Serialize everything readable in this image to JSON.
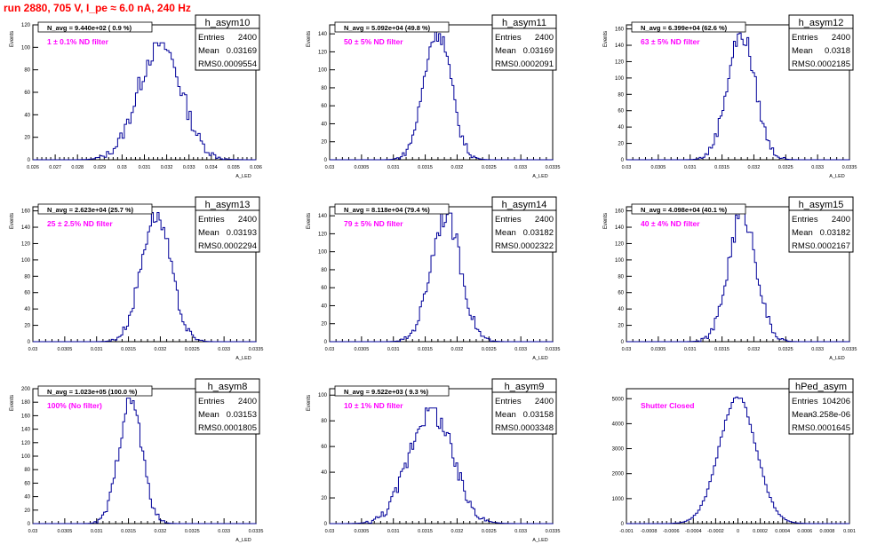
{
  "page": {
    "run_title": "run 2880,   705 V, I_pe ≈ 6.0 nA, 240 Hz",
    "title_color": "#ff0000",
    "label_color": "#ff00ff",
    "hist_color": "#000099"
  },
  "chart_data": [
    {
      "type": "bar",
      "name": "h_asym10",
      "ylabel": "Events",
      "xlabel": "A_LED",
      "xlim": [
        0.026,
        0.036
      ],
      "ylim": [
        0,
        120
      ],
      "xticks": [
        "0.026",
        "0.027",
        "0.028",
        "0.029",
        "0.03",
        "0.031",
        "0.032",
        "0.033",
        "0.034",
        "0.035",
        "0.036"
      ],
      "yticks": [
        "0",
        "20",
        "40",
        "60",
        "80",
        "100",
        "120"
      ],
      "navg": "N_avg = 9.440e+02 ( 0.9 %)",
      "filter": "1 ± 0.1% ND filter",
      "stats": {
        "entries": "2400",
        "mean": "0.03169",
        "rms": "0.0009554"
      },
      "mean": 0.03169,
      "rms": 0.0009554,
      "peak": 104,
      "bin_width": 0.0001
    },
    {
      "type": "bar",
      "name": "h_asym11",
      "ylabel": "Events",
      "xlabel": "A_LED",
      "xlim": [
        0.03,
        0.0335
      ],
      "ylim": [
        0,
        150
      ],
      "xticks": [
        "0.03",
        "0.0305",
        "0.031",
        "0.0315",
        "0.032",
        "0.0325",
        "0.033",
        "0.0335"
      ],
      "yticks": [
        "0",
        "20",
        "40",
        "60",
        "80",
        "100",
        "120",
        "140"
      ],
      "navg": "N_avg = 5.092e+04 (49.8 %)",
      "filter": "50 ± 5% ND filter",
      "stats": {
        "entries": "2400",
        "mean": "0.03169",
        "rms": "0.0002091"
      },
      "mean": 0.03169,
      "rms": 0.0002091,
      "peak": 146,
      "bin_width": 3e-05
    },
    {
      "type": "bar",
      "name": "h_asym12",
      "ylabel": "Events",
      "xlabel": "A_LED",
      "xlim": [
        0.03,
        0.0335
      ],
      "ylim": [
        0,
        165
      ],
      "xticks": [
        "0.03",
        "0.0305",
        "0.031",
        "0.0315",
        "0.032",
        "0.0325",
        "0.033",
        "0.0335"
      ],
      "yticks": [
        "0",
        "20",
        "40",
        "60",
        "80",
        "100",
        "120",
        "140",
        "160"
      ],
      "navg": "N_avg = 6.399e+04 (62.6 %)",
      "filter": "63 ± 5% ND filter",
      "stats": {
        "entries": "2400",
        "mean": "0.0318",
        "rms": "0.0002185"
      },
      "mean": 0.0318,
      "rms": 0.0002185,
      "peak": 155,
      "bin_width": 3e-05
    },
    {
      "type": "bar",
      "name": "h_asym13",
      "ylabel": "Events",
      "xlabel": "A_LED",
      "xlim": [
        0.03,
        0.0335
      ],
      "ylim": [
        0,
        165
      ],
      "xticks": [
        "0.03",
        "0.0305",
        "0.031",
        "0.0315",
        "0.032",
        "0.0325",
        "0.033",
        "0.0335"
      ],
      "yticks": [
        "0",
        "20",
        "40",
        "60",
        "80",
        "100",
        "120",
        "140",
        "160"
      ],
      "navg": "N_avg = 2.623e+04 (25.7 %)",
      "filter": "25 ± 2.5% ND filter",
      "stats": {
        "entries": "2400",
        "mean": "0.03193",
        "rms": "0.0002294"
      },
      "mean": 0.03193,
      "rms": 0.0002294,
      "peak": 158,
      "bin_width": 3e-05
    },
    {
      "type": "bar",
      "name": "h_asym14",
      "ylabel": "Events",
      "xlabel": "A_LED",
      "xlim": [
        0.03,
        0.0335
      ],
      "ylim": [
        0,
        150
      ],
      "xticks": [
        "0.03",
        "0.0305",
        "0.031",
        "0.0315",
        "0.032",
        "0.0325",
        "0.033",
        "0.0335"
      ],
      "yticks": [
        "0",
        "20",
        "40",
        "60",
        "80",
        "100",
        "120",
        "140"
      ],
      "navg": "N_avg = 8.118e+04 (79.4 %)",
      "filter": "79 ± 5% ND filter",
      "stats": {
        "entries": "2400",
        "mean": "0.03182",
        "rms": "0.0002322"
      },
      "mean": 0.03182,
      "rms": 0.0002322,
      "peak": 143,
      "bin_width": 3e-05
    },
    {
      "type": "bar",
      "name": "h_asym15",
      "ylabel": "Events",
      "xlabel": "A_LED",
      "xlim": [
        0.03,
        0.0335
      ],
      "ylim": [
        0,
        165
      ],
      "xticks": [
        "0.03",
        "0.0305",
        "0.031",
        "0.0315",
        "0.032",
        "0.0325",
        "0.033",
        "0.0335"
      ],
      "yticks": [
        "0",
        "20",
        "40",
        "60",
        "80",
        "100",
        "120",
        "140",
        "160"
      ],
      "navg": "N_avg = 4.098e+04 (40.1 %)",
      "filter": "40 ± 4% ND filter",
      "stats": {
        "entries": "2400",
        "mean": "0.03182",
        "rms": "0.0002167"
      },
      "mean": 0.03182,
      "rms": 0.0002167,
      "peak": 158,
      "bin_width": 3e-05
    },
    {
      "type": "bar",
      "name": "h_asym8",
      "ylabel": "Events",
      "xlabel": "A_LED",
      "xlim": [
        0.03,
        0.0335
      ],
      "ylim": [
        0,
        200
      ],
      "xticks": [
        "0.03",
        "0.0305",
        "0.031",
        "0.0315",
        "0.032",
        "0.0325",
        "0.033",
        "0.0335"
      ],
      "yticks": [
        "0",
        "20",
        "40",
        "60",
        "80",
        "100",
        "120",
        "140",
        "160",
        "180",
        "200"
      ],
      "navg": "N_avg = 1.023e+05 (100.0 %)",
      "filter": "100% (No filter)",
      "stats": {
        "entries": "2400",
        "mean": "0.03153",
        "rms": "0.0001805"
      },
      "mean": 0.03153,
      "rms": 0.0001805,
      "peak": 186,
      "bin_width": 3e-05
    },
    {
      "type": "bar",
      "name": "h_asym9",
      "ylabel": "Events",
      "xlabel": "A_LED",
      "xlim": [
        0.03,
        0.0335
      ],
      "ylim": [
        0,
        105
      ],
      "xticks": [
        "0.03",
        "0.0305",
        "0.031",
        "0.0315",
        "0.032",
        "0.0325",
        "0.033",
        "0.0335"
      ],
      "yticks": [
        "0",
        "20",
        "40",
        "60",
        "80",
        "100"
      ],
      "navg": "N_avg = 9.522e+03 ( 9.3 %)",
      "filter": "10 ± 1% ND filter",
      "stats": {
        "entries": "2400",
        "mean": "0.03158",
        "rms": "0.0003348"
      },
      "mean": 0.03158,
      "rms": 0.0003348,
      "peak": 90,
      "bin_width": 3e-05
    },
    {
      "type": "bar",
      "name": "hPed_asym",
      "ylabel": "",
      "xlabel": "",
      "xlim": [
        -0.001,
        0.001
      ],
      "ylim": [
        0,
        5400
      ],
      "xticks": [
        "-0.001",
        "-0.0008",
        "-0.0006",
        "-0.0004",
        "-0.0002",
        "0",
        "0.0002",
        "0.0004",
        "0.0006",
        "0.0008",
        "0.001"
      ],
      "yticks": [
        "0",
        "1000",
        "2000",
        "3000",
        "4000",
        "5000"
      ],
      "navg": "",
      "filter": "Shutter Closed",
      "stats": {
        "entries": "104206",
        "mean": "-3.258e-06",
        "rms": "0.0001645"
      },
      "mean": -3.258e-06,
      "rms": 0.0001645,
      "peak": 5080,
      "bin_width": 2e-05
    }
  ]
}
